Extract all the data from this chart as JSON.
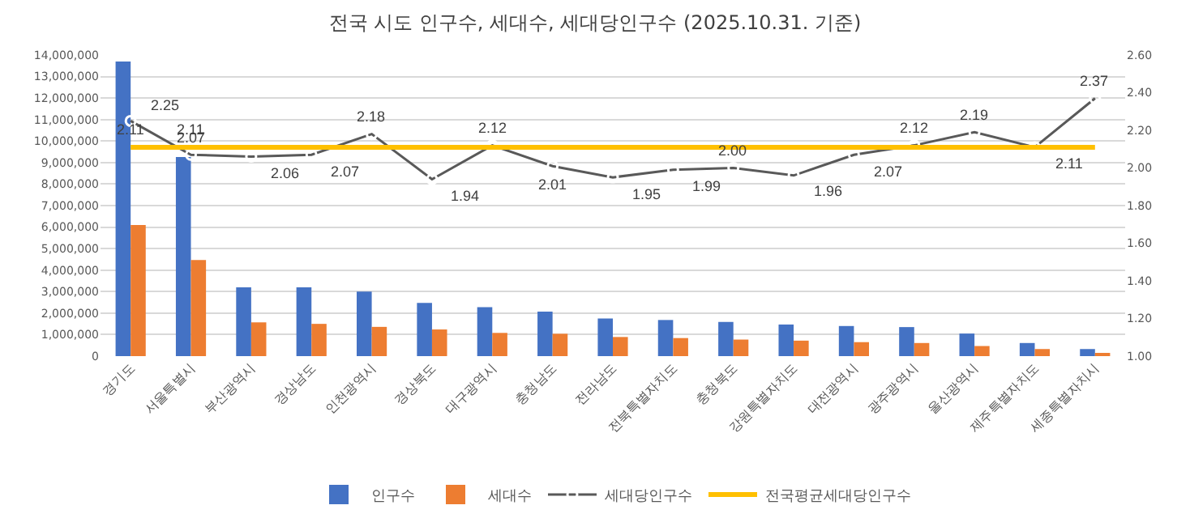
{
  "chart_data": {
    "type": "bar",
    "title": "전국 시도 인구수, 세대수, 세대당인구수 (2025.10.31. 기준)",
    "categories": [
      "경기도",
      "서울특별시",
      "부산광역시",
      "경상남도",
      "인천광역시",
      "경상북도",
      "대구광역시",
      "충청남도",
      "전라남도",
      "전북특별자치도",
      "충청북도",
      "강원특별자치도",
      "대전광역시",
      "광주광역시",
      "울산광역시",
      "제주특별자치도",
      "세종특별자치시"
    ],
    "series": [
      {
        "name": "인구수",
        "color": "#4472c4",
        "values": [
          13700000,
          9260000,
          3200000,
          3200000,
          3000000,
          2470000,
          2280000,
          2070000,
          1750000,
          1680000,
          1590000,
          1470000,
          1400000,
          1350000,
          1050000,
          610000,
          330000
        ]
      },
      {
        "name": "세대수",
        "color": "#ed7d31",
        "values": [
          6100000,
          4470000,
          1570000,
          1500000,
          1360000,
          1240000,
          1080000,
          1040000,
          890000,
          840000,
          770000,
          720000,
          650000,
          610000,
          470000,
          330000,
          140000
        ]
      },
      {
        "name": "세대당인구수",
        "type": "line",
        "axis": "y2",
        "color": "#595959",
        "marker": "circle",
        "values": [
          2.25,
          2.07,
          2.06,
          2.07,
          2.18,
          1.94,
          2.12,
          2.01,
          1.95,
          1.99,
          2.0,
          1.96,
          2.07,
          2.12,
          2.19,
          2.11,
          2.37
        ],
        "value_labels": [
          "2.25",
          "2.07",
          "2.06",
          "2.07",
          "2.18",
          "1.94",
          "2.12",
          "2.01",
          "1.95",
          "1.99",
          "2.00",
          "1.96",
          "2.07",
          "2.12",
          "2.19",
          "2.11",
          "2.37"
        ]
      },
      {
        "name": "전국평균세대당인구수",
        "type": "line",
        "axis": "y2",
        "color": "#ffc000",
        "marker": "none",
        "values": [
          2.11,
          2.11,
          2.11,
          2.11,
          2.11,
          2.11,
          2.11,
          2.11,
          2.11,
          2.11,
          2.11,
          2.11,
          2.11,
          2.11,
          2.11,
          2.11,
          2.11
        ],
        "value_labels": [
          "2.11",
          "2.11",
          null,
          null,
          null,
          null,
          null,
          null,
          null,
          null,
          null,
          null,
          null,
          null,
          null,
          null,
          null
        ]
      }
    ],
    "ylim": [
      0,
      14000000
    ],
    "yticks": [
      0,
      {
        "value": 1000000,
        "label": "1,000,000"
      },
      {
        "value": 2000000,
        "label": "2,000,000"
      },
      {
        "value": 3000000,
        "label": "3,000,000"
      },
      {
        "value": 4000000,
        "label": "4,000,000"
      },
      {
        "value": 5000000,
        "label": "5,000,000"
      },
      {
        "value": 6000000,
        "label": "6,000,000"
      },
      {
        "value": 7000000,
        "label": "7,000,000"
      },
      {
        "value": 8000000,
        "label": "8,000,000"
      },
      {
        "value": 9000000,
        "label": "9,000,000"
      },
      {
        "value": 10000000,
        "label": "10,000,000"
      },
      {
        "value": 11000000,
        "label": "11,000,000"
      },
      {
        "value": 12000000,
        "label": "12,000,000"
      },
      {
        "value": 13000000,
        "label": "13,000,000"
      },
      {
        "value": 14000000,
        "label": "14,000,000"
      }
    ],
    "y2lim": [
      1,
      2.6
    ],
    "y2ticks": [
      {
        "value": 1,
        "label": "1.00"
      },
      {
        "value": 1.2,
        "label": "1.20"
      },
      {
        "value": 1.4,
        "label": "1.40"
      },
      {
        "value": 1.6,
        "label": "1.60"
      },
      {
        "value": 1.8,
        "label": "1.80"
      },
      {
        "value": 2,
        "label": "2.00"
      },
      {
        "value": 2.2,
        "label": "2.20"
      },
      {
        "value": 2.4,
        "label": "2.40"
      },
      {
        "value": 2.6,
        "label": "2.60"
      }
    ],
    "grid": "y",
    "legend": "bottom"
  }
}
